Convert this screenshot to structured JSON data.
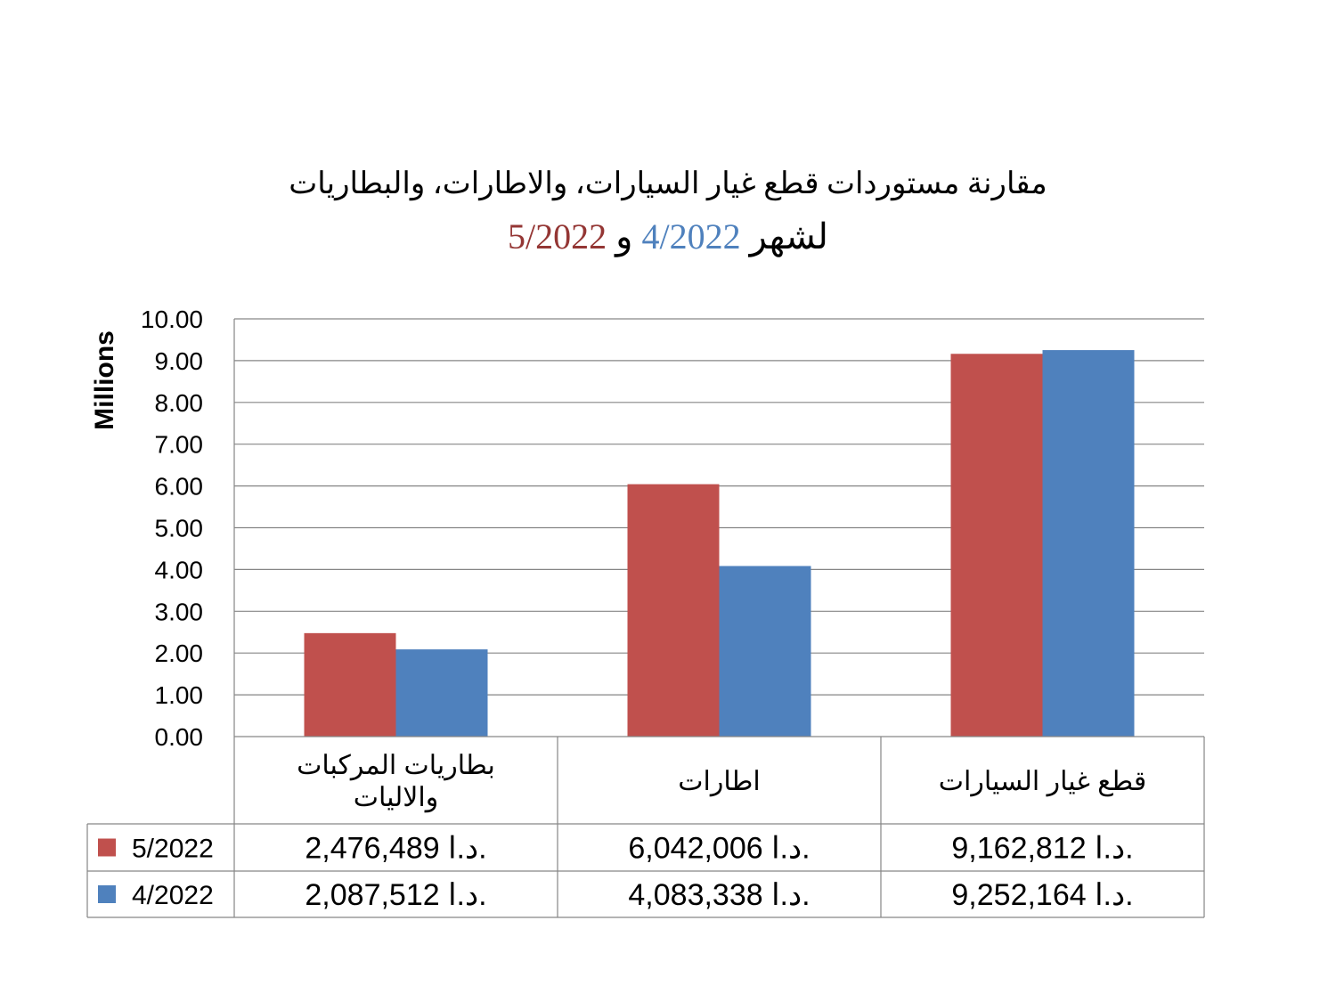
{
  "title": {
    "line1": "مقارنة مستوردات قطع غيار السيارات، والاطارات، والبطاريات",
    "line2_prefix": "لشهر",
    "line2_month_a": "4/2022",
    "line2_connector": "و",
    "line2_month_b": "5/2022"
  },
  "colors": {
    "series_5_2022": "#c0504d",
    "series_4_2022": "#4f81bd",
    "title_month_a": "#4f81bd",
    "title_month_b": "#943634"
  },
  "chart_data": {
    "type": "bar",
    "ylabel": "Millions",
    "ylim": [
      0,
      10
    ],
    "yticks": [
      "0.00",
      "1.00",
      "2.00",
      "3.00",
      "4.00",
      "5.00",
      "6.00",
      "7.00",
      "8.00",
      "9.00",
      "10.00"
    ],
    "grid": true,
    "categories": [
      [
        "بطاريات المركبات",
        "والاليات"
      ],
      [
        "اطارات"
      ],
      [
        "قطع غيار السيارات"
      ]
    ],
    "series": [
      {
        "name": "5/2022",
        "color": "#c0504d",
        "values": [
          2.476489,
          6.042006,
          9.162812
        ],
        "labels": [
          "2,476,489 د.ا.",
          "6,042,006 د.ا.",
          "9,162,812 د.ا."
        ]
      },
      {
        "name": "4/2022",
        "color": "#4f81bd",
        "values": [
          2.087512,
          4.083338,
          9.252164
        ],
        "labels": [
          "2,087,512 د.ا.",
          "4,083,338 د.ا.",
          "9,252,164 د.ا."
        ]
      }
    ]
  }
}
